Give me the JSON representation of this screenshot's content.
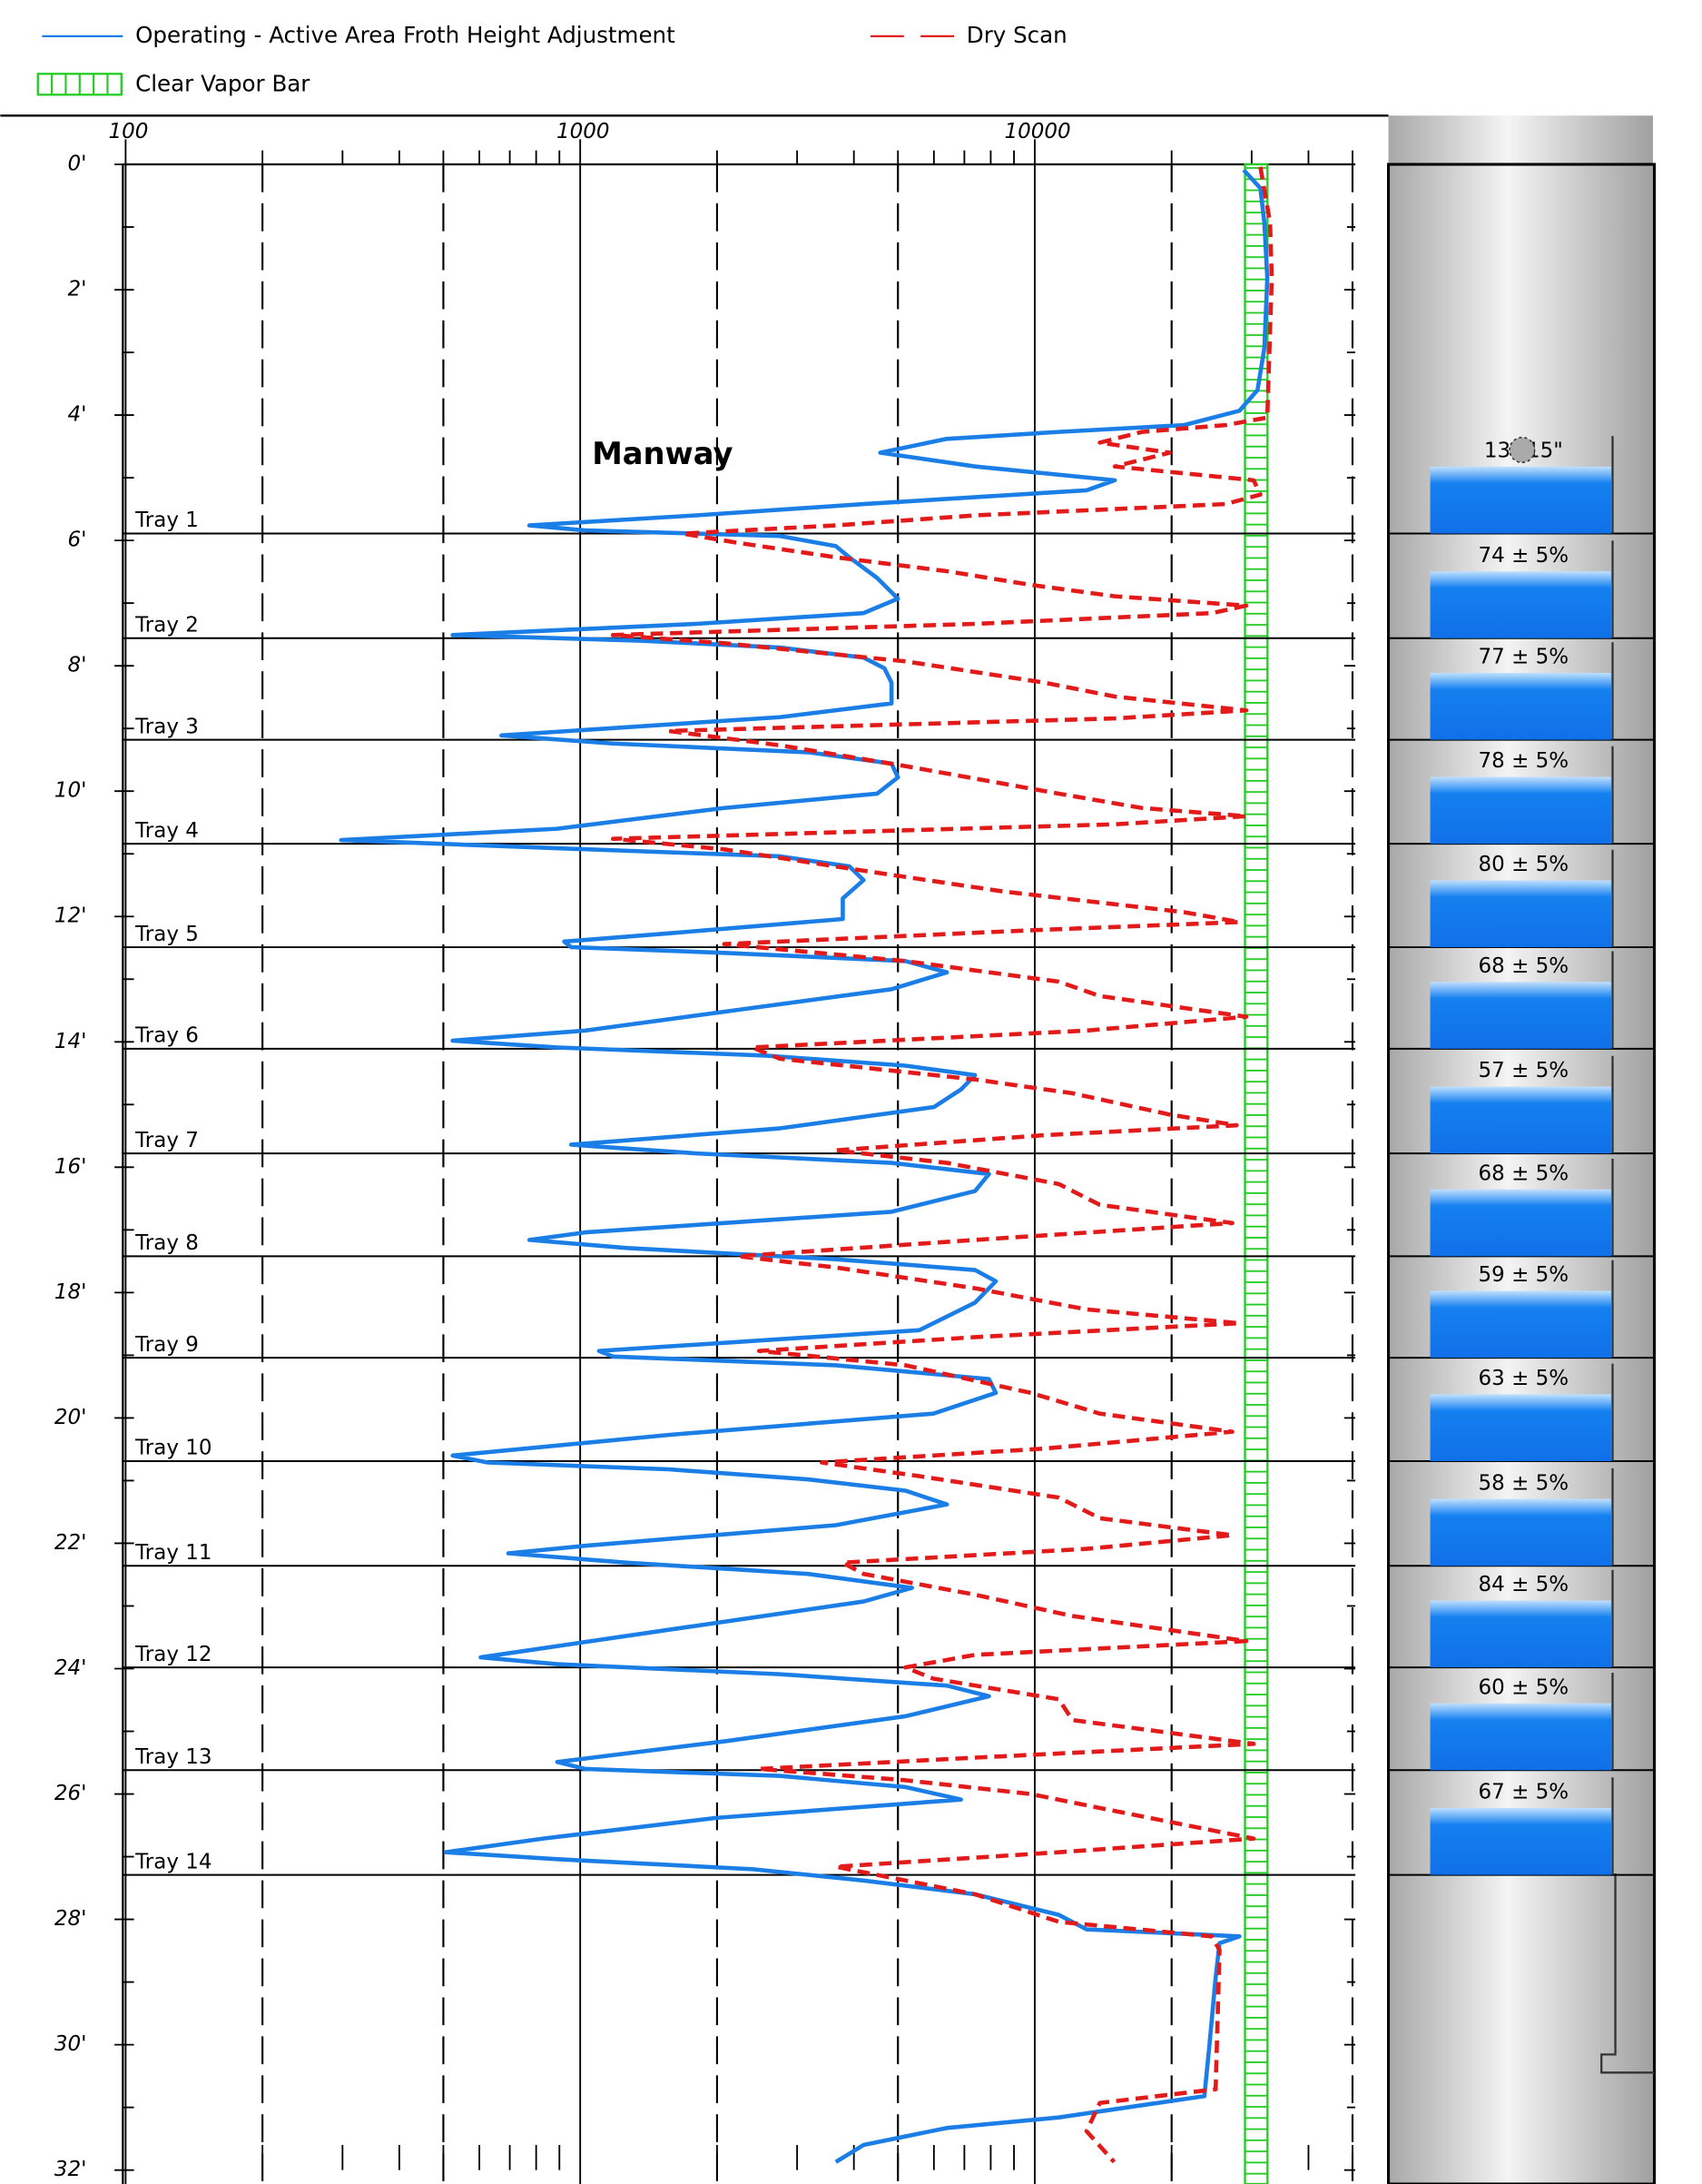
{
  "chart_data": {
    "type": "line",
    "xscale": "log",
    "xlim": [
      100,
      50000
    ],
    "xticks": [
      100,
      1000,
      10000
    ],
    "xgrid": [
      200,
      500,
      2000,
      5000,
      20000,
      50000
    ],
    "xminor": [
      200,
      300,
      400,
      500,
      600,
      700,
      800,
      900,
      2000,
      3000,
      4000,
      5000,
      6000,
      7000,
      8000,
      9000,
      20000,
      30000,
      40000,
      50000
    ],
    "ylim": [
      0,
      32
    ],
    "yinverted": true,
    "yticks": [
      {
        "value": 0,
        "label": "0'"
      },
      {
        "value": 2,
        "label": "2'"
      },
      {
        "value": 4,
        "label": "4'"
      },
      {
        "value": 6,
        "label": "6'"
      },
      {
        "value": 8,
        "label": "8'"
      },
      {
        "value": 10,
        "label": "10'"
      },
      {
        "value": 12,
        "label": "12'"
      },
      {
        "value": 14,
        "label": "14'"
      },
      {
        "value": 16,
        "label": "16'"
      },
      {
        "value": 18,
        "label": "18'"
      },
      {
        "value": 20,
        "label": "20'"
      },
      {
        "value": 22,
        "label": "22'"
      },
      {
        "value": 24,
        "label": "24'"
      },
      {
        "value": 26,
        "label": "26'"
      },
      {
        "value": 28,
        "label": "28'"
      },
      {
        "value": 30,
        "label": "30'"
      },
      {
        "value": 32,
        "label": "32'"
      }
    ],
    "yminor": [
      1,
      3,
      5,
      7,
      9,
      11,
      13,
      15,
      17,
      19,
      21,
      23,
      25,
      27,
      29,
      31
    ],
    "series": [
      {
        "name": "Operating - Active Area Froth Height Adjustment",
        "color": "#1a7ee6",
        "style": "solid",
        "depths": [
          0.09,
          0.38,
          0.93,
          1.82,
          2.93,
          3.6,
          3.93,
          4.16,
          4.27,
          4.38,
          4.6,
          4.82,
          5.04,
          5.2,
          5.42,
          5.6,
          5.76,
          5.84,
          5.93,
          6.09,
          6.27,
          6.6,
          6.93,
          7.16,
          7.33,
          7.51,
          7.6,
          7.71,
          7.87,
          8.04,
          8.27,
          8.6,
          8.82,
          9.11,
          9.24,
          9.38,
          9.56,
          9.78,
          10.04,
          10.27,
          10.6,
          10.78,
          10.91,
          11.04,
          11.2,
          11.42,
          11.71,
          12.04,
          12.27,
          12.4,
          12.49,
          12.58,
          12.71,
          12.89,
          13.16,
          13.49,
          13.82,
          13.98,
          14.09,
          14.22,
          14.38,
          14.53,
          14.76,
          15.04,
          15.38,
          15.64,
          15.78,
          15.93,
          16.11,
          16.38,
          16.71,
          17.04,
          17.16,
          17.29,
          17.47,
          17.64,
          17.82,
          18.16,
          18.6,
          18.93,
          19.02,
          19.16,
          19.38,
          19.6,
          19.93,
          20.27,
          20.6,
          20.71,
          20.82,
          20.98,
          21.16,
          21.38,
          21.71,
          22.04,
          22.16,
          22.31,
          22.49,
          22.71,
          22.93,
          23.38,
          23.82,
          23.93,
          24.09,
          24.27,
          24.44,
          24.76,
          25.16,
          25.49,
          25.6,
          25.71,
          25.89,
          26.09,
          26.38,
          26.71,
          26.93,
          27.04,
          27.2,
          27.38,
          27.6,
          27.93,
          28.16,
          28.27,
          28.38,
          28.93,
          30.04,
          30.82,
          31.16,
          31.33,
          31.6,
          31.87
        ],
        "values": [
          28800,
          31350,
          32000,
          32460,
          32000,
          30900,
          28200,
          21300,
          11300,
          6400,
          4570,
          7400,
          15000,
          13000,
          4200,
          1800,
          773,
          1025,
          2750,
          3650,
          3910,
          4500,
          5000,
          4200,
          1800,
          524,
          1360,
          2750,
          4200,
          4670,
          4840,
          4840,
          2750,
          671,
          1180,
          3170,
          4840,
          5000,
          4500,
          2075,
          890,
          298,
          890,
          2750,
          3910,
          4200,
          3780,
          3780,
          1565,
          922,
          955,
          2075,
          5190,
          6410,
          4840,
          2230,
          1025,
          524,
          890,
          2564,
          5190,
          7390,
          6880,
          6000,
          2750,
          955,
          1800,
          4840,
          7930,
          7390,
          4840,
          1025,
          773,
          1267,
          3650,
          7390,
          8210,
          7390,
          5570,
          1100,
          1180,
          3650,
          7930,
          8210,
          5980,
          1565,
          524,
          626,
          1565,
          3170,
          5190,
          6410,
          3650,
          1025,
          695,
          1267,
          3170,
          5370,
          4200,
          1565,
          604,
          890,
          2750,
          6410,
          7930,
          5190,
          2075,
          890,
          1025,
          2750,
          5190,
          6880,
          2000,
          829,
          506,
          890,
          2400,
          4200,
          7390,
          11300,
          13000,
          28200,
          25500,
          25000,
          24200,
          23600,
          11300,
          6400,
          4200,
          3650
        ]
      },
      {
        "name": "Dry Scan",
        "color": "#e31a1a",
        "style": "dashed",
        "depths": [
          0.04,
          0.93,
          1.82,
          4.04,
          4.16,
          4.27,
          4.44,
          4.6,
          4.82,
          5.04,
          5.27,
          5.42,
          5.6,
          5.76,
          5.89,
          6.04,
          6.27,
          6.49,
          6.71,
          6.89,
          7.04,
          7.16,
          7.33,
          7.51,
          7.64,
          7.93,
          8.27,
          8.49,
          8.71,
          8.84,
          9.04,
          9.27,
          9.6,
          10.04,
          10.27,
          10.4,
          10.53,
          10.76,
          10.93,
          11.27,
          11.6,
          11.93,
          12.09,
          12.22,
          12.44,
          12.71,
          13.04,
          13.27,
          13.6,
          13.82,
          14.09,
          14.27,
          14.6,
          14.82,
          15.16,
          15.33,
          15.49,
          15.73,
          15.93,
          16.27,
          16.6,
          16.89,
          17.16,
          17.42,
          17.6,
          17.93,
          18.27,
          18.49,
          18.71,
          18.93,
          19.16,
          19.6,
          19.93,
          20.22,
          20.49,
          20.71,
          20.93,
          21.27,
          21.6,
          21.87,
          22.09,
          22.31,
          22.49,
          22.82,
          23.16,
          23.56,
          23.78,
          23.98,
          24.16,
          24.49,
          24.82,
          25.2,
          25.42,
          25.6,
          25.78,
          26.0,
          26.27,
          26.71,
          26.93,
          27.16,
          27.38,
          27.6,
          28.04,
          28.27,
          28.49,
          30.71,
          30.93,
          31.38,
          31.87
        ],
        "values": [
          31350,
          32940,
          33200,
          32460,
          26300,
          17200,
          13900,
          19800,
          15000,
          30300,
          31350,
          26300,
          7390,
          3650,
          1680,
          2230,
          3650,
          6410,
          9800,
          15000,
          29200,
          24500,
          7390,
          1180,
          2075,
          5190,
          10500,
          15000,
          29200,
          15000,
          1565,
          2750,
          5190,
          11300,
          17200,
          29200,
          15000,
          1180,
          2075,
          4200,
          8510,
          21300,
          28200,
          9800,
          2075,
          5190,
          11300,
          13900,
          29200,
          13000,
          2390,
          2750,
          7390,
          12100,
          19800,
          27800,
          10500,
          3650,
          6410,
          11300,
          13900,
          27200,
          7390,
          2230,
          3650,
          7390,
          13000,
          28200,
          7390,
          2475,
          5190,
          9800,
          13900,
          27200,
          10500,
          3400,
          5570,
          11300,
          13900,
          27200,
          13000,
          3780,
          4200,
          7390,
          12100,
          29200,
          7390,
          5190,
          5980,
          11300,
          12100,
          30300,
          7390,
          2475,
          5190,
          9800,
          15000,
          30300,
          11300,
          3650,
          5190,
          7390,
          11300,
          24500,
          25500,
          25000,
          13900,
          13000,
          14950
        ]
      }
    ],
    "vapor_bar": {
      "name": "Clear Vapor Bar",
      "color": "#22cc22",
      "range": [
        29000,
        32500
      ]
    },
    "annotation": "Manway",
    "trays": [
      {
        "label": "Tray 1",
        "depth": 5.89
      },
      {
        "label": "Tray 2",
        "depth": 7.56
      },
      {
        "label": "Tray 3",
        "depth": 9.18
      },
      {
        "label": "Tray 4",
        "depth": 10.84
      },
      {
        "label": "Tray 5",
        "depth": 12.49
      },
      {
        "label": "Tray 6",
        "depth": 14.11
      },
      {
        "label": "Tray 7",
        "depth": 15.78
      },
      {
        "label": "Tray 8",
        "depth": 17.42
      },
      {
        "label": "Tray 9",
        "depth": 19.04
      },
      {
        "label": "Tray 10",
        "depth": 20.69
      },
      {
        "label": "Tray 11",
        "depth": 22.36
      },
      {
        "label": "Tray 12",
        "depth": 23.98
      },
      {
        "label": "Tray 13",
        "depth": 25.62
      },
      {
        "label": "Tray 14",
        "depth": 27.29
      }
    ],
    "column_labels": [
      "13\"   15\"",
      "74 ± 5%",
      "77 ± 5%",
      "78 ± 5%",
      "80 ± 5%",
      "68 ± 5%",
      "57 ± 5%",
      "68 ± 5%",
      "59 ± 5%",
      "63 ± 5%",
      "58 ± 5%",
      "84 ± 5%",
      "60 ± 5%",
      "67 ± 5%"
    ]
  }
}
